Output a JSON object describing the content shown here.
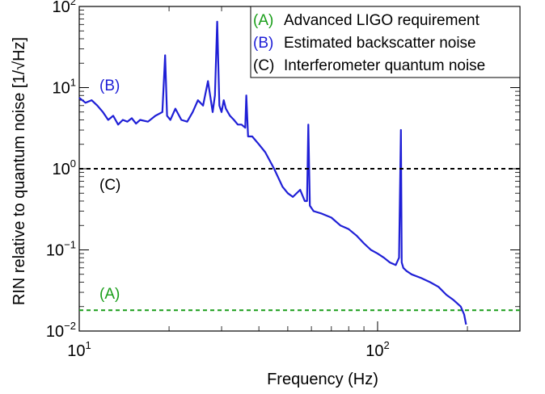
{
  "chart_data": {
    "type": "line",
    "xlabel": "Frequency (Hz)",
    "ylabel": "RIN relative to quantum noise [1/√Hz]",
    "x_scale": "log",
    "y_scale": "log",
    "xlim": [
      10,
      300
    ],
    "ylim": [
      0.01,
      100
    ],
    "grid": false,
    "legend_position": "top-right",
    "x_major_ticks": [
      {
        "value": 10,
        "base": "10",
        "exp": "1"
      },
      {
        "value": 100,
        "base": "10",
        "exp": "2"
      }
    ],
    "y_major_ticks": [
      {
        "value": 0.01,
        "base": "10",
        "exp": "−2"
      },
      {
        "value": 0.1,
        "base": "10",
        "exp": "−1"
      },
      {
        "value": 1,
        "base": "10",
        "exp": "0"
      },
      {
        "value": 10,
        "base": "10",
        "exp": "1"
      },
      {
        "value": 100,
        "base": "10",
        "exp": "2"
      }
    ],
    "series": [
      {
        "key": "A",
        "name": "Advanced LIGO requirement",
        "style": "dashed",
        "color": "#1a9e1a",
        "label_tag": "(A)",
        "x": [
          10,
          300
        ],
        "y": [
          0.018,
          0.018
        ]
      },
      {
        "key": "B",
        "name": "Estimated backscatter noise",
        "style": "solid",
        "color": "#1f1fd6",
        "label_tag": "(B)",
        "x": [
          10,
          10.5,
          11,
          11.5,
          12,
          12.5,
          13,
          13.5,
          14,
          14.5,
          15,
          15.5,
          16,
          17,
          18,
          19,
          19.4,
          19.7,
          20.2,
          21,
          22,
          23,
          24,
          25,
          26,
          27,
          28,
          28.5,
          29,
          29.5,
          30,
          30.5,
          31,
          32,
          33,
          34,
          35,
          36,
          36.3,
          36.8,
          38,
          40,
          42,
          45,
          48,
          50,
          52,
          55,
          57,
          58,
          58.6,
          59.3,
          61,
          65,
          70,
          75,
          80,
          85,
          90,
          95,
          100,
          105,
          110,
          115,
          118,
          119.7,
          120.5,
          122,
          125,
          130,
          140,
          150,
          160,
          170,
          180,
          190,
          195,
          198
        ],
        "y": [
          7.5,
          6.5,
          7.0,
          6.0,
          5.0,
          4.0,
          4.5,
          3.5,
          4.0,
          3.8,
          4.2,
          3.6,
          4.0,
          3.8,
          4.5,
          5.0,
          25,
          4.5,
          4.0,
          5.5,
          4.0,
          3.8,
          5.0,
          7.0,
          6.0,
          12,
          5.0,
          8.0,
          65,
          6.0,
          5.0,
          7.0,
          5.5,
          4.5,
          4.0,
          3.5,
          3.5,
          3.2,
          8.0,
          2.5,
          2.5,
          2.0,
          1.6,
          1.0,
          0.6,
          0.5,
          0.45,
          0.55,
          0.4,
          0.4,
          3.5,
          0.35,
          0.3,
          0.28,
          0.25,
          0.2,
          0.18,
          0.15,
          0.12,
          0.1,
          0.09,
          0.08,
          0.07,
          0.065,
          0.08,
          3.0,
          0.07,
          0.06,
          0.055,
          0.05,
          0.045,
          0.04,
          0.035,
          0.028,
          0.024,
          0.02,
          0.016,
          0.012
        ]
      },
      {
        "key": "C",
        "name": "Interferometer quantum noise",
        "style": "dashed",
        "color": "#000000",
        "label_tag": "(C)",
        "x": [
          10,
          300
        ],
        "y": [
          1.0,
          1.0
        ]
      }
    ]
  }
}
